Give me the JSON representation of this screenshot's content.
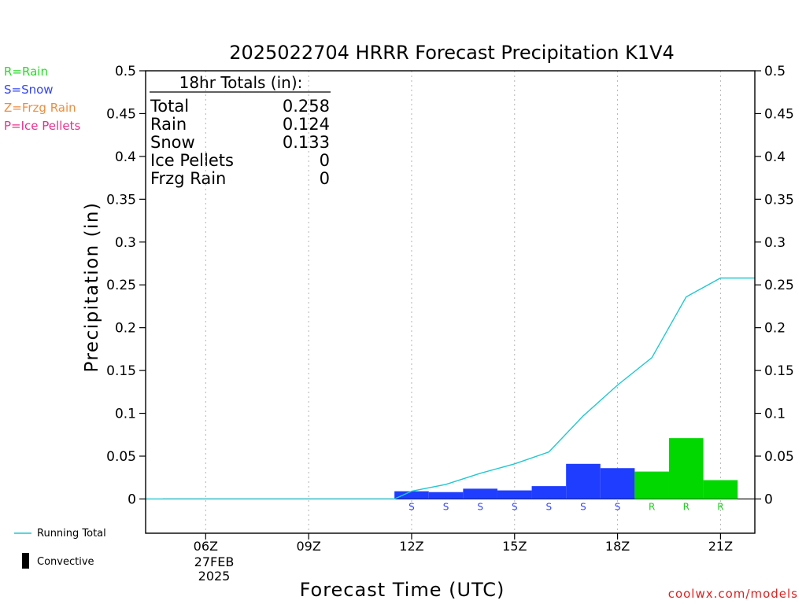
{
  "chart_data": {
    "type": "bar",
    "title": "2025022704 HRRR Forecast Precipitation K1V4",
    "xlabel": "Forecast Time (UTC)",
    "ylabel": "Precipitation (in)",
    "ylim": [
      -0.04,
      0.5
    ],
    "xlim_hours": [
      4.25,
      22.0
    ],
    "y_ticks": [
      "0.5",
      "0.45",
      "0.4",
      "0.35",
      "0.3",
      "0.25",
      "0.2",
      "0.15",
      "0.1",
      "0.05",
      "0"
    ],
    "y_tick_values": [
      0.5,
      0.45,
      0.4,
      0.35,
      0.3,
      0.25,
      0.2,
      0.15,
      0.1,
      0.05,
      0
    ],
    "x_ticks": [
      {
        "hour": 6,
        "label": "06Z"
      },
      {
        "hour": 9,
        "label": "09Z"
      },
      {
        "hour": 12,
        "label": "12Z"
      },
      {
        "hour": 15,
        "label": "15Z"
      },
      {
        "hour": 18,
        "label": "18Z"
      },
      {
        "hour": 21,
        "label": "21Z"
      }
    ],
    "date_label": {
      "day": "27FEB",
      "year": "2025"
    },
    "grid": "vertical dotted",
    "bars": [
      {
        "start": 11.5,
        "end": 12.5,
        "value": 0.009,
        "type": "S"
      },
      {
        "start": 12.5,
        "end": 13.5,
        "value": 0.008,
        "type": "S"
      },
      {
        "start": 13.5,
        "end": 14.5,
        "value": 0.012,
        "type": "S"
      },
      {
        "start": 14.5,
        "end": 15.5,
        "value": 0.01,
        "type": "S"
      },
      {
        "start": 15.5,
        "end": 16.5,
        "value": 0.015,
        "type": "S"
      },
      {
        "start": 16.5,
        "end": 17.5,
        "value": 0.041,
        "type": "S"
      },
      {
        "start": 17.5,
        "end": 18.5,
        "value": 0.036,
        "type": "S"
      },
      {
        "start": 18.5,
        "end": 19.5,
        "value": 0.032,
        "type": "R"
      },
      {
        "start": 19.5,
        "end": 20.5,
        "value": 0.071,
        "type": "R"
      },
      {
        "start": 20.5,
        "end": 21.5,
        "value": 0.022,
        "type": "R"
      }
    ],
    "running_total": {
      "name": "Running Total",
      "hours": [
        4.25,
        11.0,
        11.5,
        12.0,
        13.0,
        14.0,
        15.0,
        16.0,
        17.0,
        18.0,
        19.0,
        20.0,
        21.0,
        22.0
      ],
      "values": [
        0,
        0,
        0.0,
        0.009,
        0.017,
        0.03,
        0.041,
        0.055,
        0.097,
        0.133,
        0.165,
        0.236,
        0.258,
        0.258
      ]
    },
    "type_colors": {
      "S": "#1f3dff",
      "R": "#00d800",
      "Z": "#f08c3c",
      "P": "#e8308c"
    },
    "running_total_color": "#20c8d0",
    "totals_box": {
      "heading": "18hr Totals (in):",
      "rows": [
        {
          "label": "Total",
          "value": "0.258"
        },
        {
          "label": "Rain",
          "value": "0.124"
        },
        {
          "label": "Snow",
          "value": "0.133"
        },
        {
          "label": "Ice Pellets",
          "value": "0"
        },
        {
          "label": "Frzg Rain",
          "value": "0"
        }
      ]
    },
    "type_legend": [
      {
        "text": "R=Rain",
        "color": "#22dd22"
      },
      {
        "text": "S=Snow",
        "color": "#3344ff"
      },
      {
        "text": "Z=Frzg Rain",
        "color": "#f08c3c"
      },
      {
        "text": "P=Ice Pellets",
        "color": "#e8308c"
      }
    ],
    "line_legend": [
      {
        "text": "Running Total",
        "kind": "line"
      },
      {
        "text": "Convective",
        "kind": "bar"
      }
    ],
    "credit": "coolwx.com/models"
  }
}
